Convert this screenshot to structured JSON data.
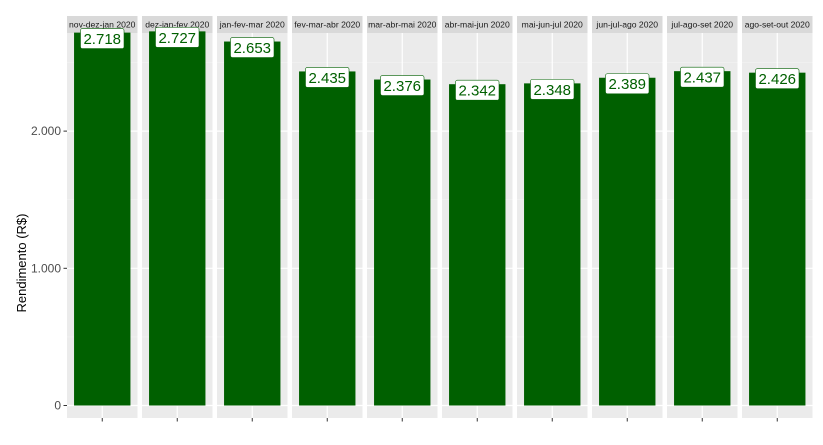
{
  "chart_data": {
    "type": "bar",
    "facet_labels": [
      "nov-dez-jan 2020",
      "dez-jan-fev 2020",
      "jan-fev-mar 2020",
      "fev-mar-abr 2020",
      "mar-abr-mai 2020",
      "abr-mai-jun 2020",
      "mai-jun-jul 2020",
      "jun-jul-ago 2020",
      "jul-ago-set 2020",
      "ago-set-out 2020"
    ],
    "values": [
      2718,
      2727,
      2653,
      2435,
      2376,
      2342,
      2348,
      2389,
      2437,
      2426
    ],
    "value_labels": [
      "2.718",
      "2.727",
      "2.653",
      "2.435",
      "2.376",
      "2.342",
      "2.348",
      "2.389",
      "2.437",
      "2.426"
    ],
    "title": "",
    "xlabel": "",
    "ylabel": "Rendimento (R$)",
    "ylim": [
      0,
      2850
    ],
    "yticks": [
      0,
      1000,
      2000
    ],
    "ytick_labels": [
      "0",
      "1.000",
      "2.000"
    ],
    "grid": true,
    "legend": "none",
    "colors": {
      "bar": "#006000",
      "panel_background": "#ebebeb",
      "strip_background": "#d9d9d9",
      "grid_major": "#ffffff",
      "grid_minor": "#f4f4f4",
      "label_text": "#006000",
      "label_fill": "#ffffff"
    }
  }
}
